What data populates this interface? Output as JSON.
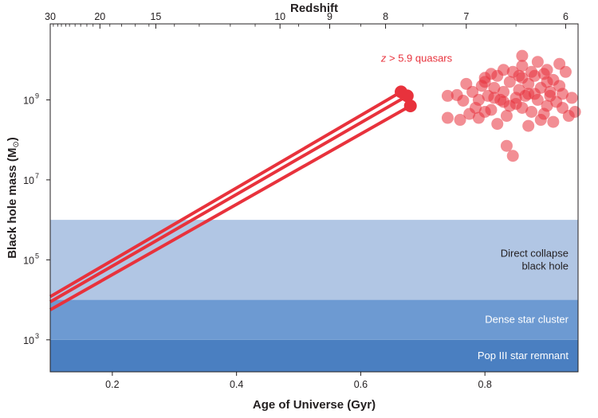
{
  "chart_data": {
    "type": "scatter",
    "title": "",
    "xlabel": "Age of Universe (Gyr)",
    "ylabel_main": "Black hole mass (M",
    "ylabel_symbol": "⊙",
    "ylabel_close": ")",
    "top_axis_label": "Redshift",
    "xlim": [
      0.1,
      0.95
    ],
    "ylim_log10": [
      2.2,
      10.9
    ],
    "x_ticks": [
      0.2,
      0.4,
      0.6,
      0.8
    ],
    "x_tick_labels": [
      "0.2",
      "0.4",
      "0.6",
      "0.8"
    ],
    "y_ticks_log10": [
      3,
      5,
      7,
      9
    ],
    "y_tick_base": "10",
    "y_tick_exponents": [
      "3",
      "5",
      "7",
      "9"
    ],
    "top_ticks_major": [
      {
        "label": "30",
        "age": 0.1
      },
      {
        "label": "20",
        "age": 0.18
      },
      {
        "label": "15",
        "age": 0.27
      },
      {
        "label": "10",
        "age": 0.47
      },
      {
        "label": "9",
        "age": 0.55
      },
      {
        "label": "8",
        "age": 0.64
      },
      {
        "label": "7",
        "age": 0.77
      },
      {
        "label": "6",
        "age": 0.93
      }
    ],
    "top_ticks_minor_ages": [
      0.105,
      0.112,
      0.118,
      0.125,
      0.131,
      0.14,
      0.149,
      0.159,
      0.169,
      0.196,
      0.215,
      0.237,
      0.259,
      0.3,
      0.34,
      0.39,
      0.43,
      0.5,
      0.6,
      0.7,
      0.85
    ],
    "bands": [
      {
        "label": "Pop III star remnant",
        "lines": [
          "Pop III star remnant"
        ],
        "ymin_log10": 2.2,
        "ymax_log10": 3,
        "color": "#4a7fc1",
        "text_color": "#ffffff"
      },
      {
        "label": "Dense star cluster",
        "lines": [
          "Dense star cluster"
        ],
        "ymin_log10": 3,
        "ymax_log10": 4,
        "color": "#6d9ad2",
        "text_color": "#ffffff"
      },
      {
        "label": "Direct collapse black hole",
        "lines": [
          "Direct collapse",
          "black hole"
        ],
        "ymin_log10": 4,
        "ymax_log10": 6,
        "color": "#b1c6e4",
        "text_color": "#231f20"
      }
    ],
    "growth_tracks": [
      {
        "x": [
          0.1,
          0.665
        ],
        "y_log10": [
          4.08,
          9.2
        ]
      },
      {
        "x": [
          0.1,
          0.675
        ],
        "y_log10": [
          3.95,
          9.1
        ]
      },
      {
        "x": [
          0.1,
          0.68
        ],
        "y_log10": [
          3.75,
          8.85
        ]
      }
    ],
    "annotation": {
      "italic": "z",
      "text": " > 5.9 quasars",
      "x": 0.69,
      "y_log10": 9.95
    },
    "quasars": {
      "name": "z > 5.9 quasars",
      "color": "#e8323c",
      "points": [
        [
          0.74,
          9.1
        ],
        [
          0.755,
          9.12
        ],
        [
          0.77,
          9.4
        ],
        [
          0.765,
          8.98
        ],
        [
          0.74,
          8.55
        ],
        [
          0.78,
          9.2
        ],
        [
          0.785,
          8.8
        ],
        [
          0.79,
          9.0
        ],
        [
          0.795,
          9.35
        ],
        [
          0.8,
          9.55
        ],
        [
          0.805,
          9.1
        ],
        [
          0.81,
          8.75
        ],
        [
          0.815,
          9.3
        ],
        [
          0.82,
          9.6
        ],
        [
          0.825,
          9.0
        ],
        [
          0.83,
          9.2
        ],
        [
          0.835,
          8.6
        ],
        [
          0.84,
          9.45
        ],
        [
          0.845,
          9.7
        ],
        [
          0.85,
          8.9
        ],
        [
          0.855,
          9.25
        ],
        [
          0.86,
          9.55
        ],
        [
          0.865,
          9.1
        ],
        [
          0.87,
          9.4
        ],
        [
          0.875,
          8.7
        ],
        [
          0.88,
          9.6
        ],
        [
          0.885,
          9.0
        ],
        [
          0.89,
          9.3
        ],
        [
          0.895,
          9.65
        ],
        [
          0.9,
          8.85
        ],
        [
          0.905,
          9.2
        ],
        [
          0.91,
          9.5
        ],
        [
          0.915,
          8.95
        ],
        [
          0.92,
          9.35
        ],
        [
          0.925,
          9.15
        ],
        [
          0.93,
          9.7
        ],
        [
          0.935,
          8.6
        ],
        [
          0.94,
          9.05
        ],
        [
          0.945,
          8.7
        ],
        [
          0.76,
          8.5
        ],
        [
          0.775,
          8.65
        ],
        [
          0.79,
          8.55
        ],
        [
          0.8,
          8.7
        ],
        [
          0.81,
          9.65
        ],
        [
          0.82,
          8.4
        ],
        [
          0.83,
          9.75
        ],
        [
          0.84,
          8.85
        ],
        [
          0.85,
          9.05
        ],
        [
          0.86,
          9.85
        ],
        [
          0.87,
          8.35
        ],
        [
          0.88,
          9.15
        ],
        [
          0.89,
          8.5
        ],
        [
          0.9,
          9.45
        ],
        [
          0.91,
          8.45
        ],
        [
          0.92,
          9.9
        ],
        [
          0.925,
          8.8
        ],
        [
          0.86,
          10.1
        ],
        [
          0.885,
          9.95
        ],
        [
          0.9,
          9.75
        ],
        [
          0.835,
          7.85
        ],
        [
          0.845,
          7.6
        ],
        [
          0.8,
          9.45
        ],
        [
          0.87,
          9.15
        ],
        [
          0.875,
          9.7
        ],
        [
          0.815,
          9.05
        ],
        [
          0.905,
          9.1
        ],
        [
          0.855,
          9.6
        ],
        [
          0.83,
          8.95
        ],
        [
          0.86,
          8.8
        ],
        [
          0.895,
          8.65
        ]
      ]
    }
  }
}
